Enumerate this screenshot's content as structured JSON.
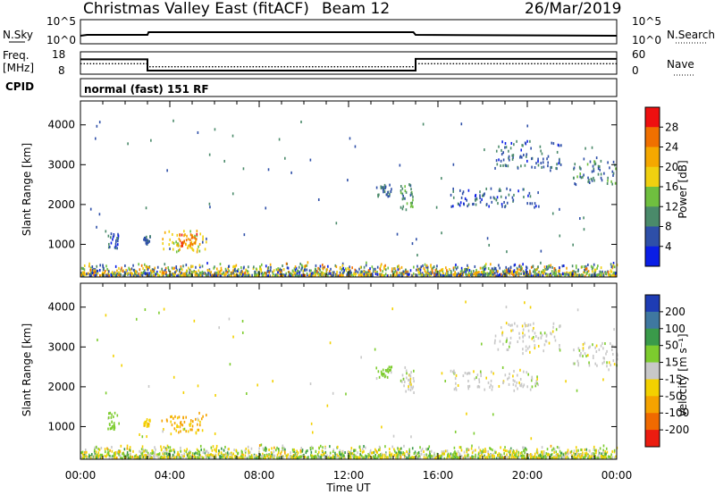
{
  "header": {
    "title": "Christmas Valley East (fitACF)",
    "beam": "Beam 12",
    "date": "26/Mar/2019"
  },
  "panels": {
    "nsky": {
      "label": "N.Sky",
      "left_ticks": [
        "10^5",
        "10^0"
      ],
      "right_ticks": [
        "10^5",
        "10^0"
      ],
      "right_label": "N.Search",
      "values": [
        [
          0,
          0.4
        ],
        [
          0.3,
          0.45
        ],
        [
          3,
          0.45
        ],
        [
          3.05,
          0.6
        ],
        [
          14.9,
          0.6
        ],
        [
          15,
          0.45
        ],
        [
          24,
          0.4
        ]
      ]
    },
    "freq": {
      "label": "Freq.",
      "unit": "[MHz]",
      "left_ticks": [
        "18",
        "8"
      ],
      "right_ticks": [
        "60",
        "0"
      ],
      "right_label": "Nave",
      "freq_steps": [
        [
          0,
          14.8
        ],
        [
          3.0,
          14.8
        ],
        [
          3.0,
          9.3
        ],
        [
          15.0,
          9.3
        ],
        [
          15.0,
          15.0
        ],
        [
          24,
          15.0
        ]
      ],
      "nave_steps": [
        [
          0,
          28
        ],
        [
          3.0,
          28
        ],
        [
          3.0,
          19
        ],
        [
          15.0,
          19
        ],
        [
          15.0,
          28
        ],
        [
          24,
          28
        ]
      ]
    },
    "cpid": {
      "label": "CPID",
      "text": "normal (fast) 151 RF"
    }
  },
  "x_ticks": [
    "00:00",
    "04:00",
    "08:00",
    "12:00",
    "16:00",
    "20:00",
    "00:00"
  ],
  "x_label": "Time UT",
  "y_label": "Slant Range [km]",
  "y_ticks": [
    "1000",
    "2000",
    "3000",
    "4000"
  ],
  "power_scale": {
    "label": "Power [dB]",
    "ticks": [
      "4",
      "8",
      "12",
      "16",
      "20",
      "24",
      "28"
    ],
    "colors": [
      "#0a1ee6",
      "#2e4fa8",
      "#4a8a6a",
      "#6fbf3f",
      "#f0d010",
      "#f5a800",
      "#f07000",
      "#ee1010"
    ]
  },
  "velocity_scale": {
    "label": "Velocity [m s⁻¹]",
    "ticks": [
      "200",
      "100",
      "50",
      "15",
      "-15",
      "-50",
      "-100",
      "-200"
    ],
    "colors": [
      "#1e3cb4",
      "#3f78a0",
      "#3a9a4a",
      "#7dcc2e",
      "#c8c8c8",
      "#f3d100",
      "#f5a300",
      "#f06a00",
      "#ec1c10"
    ]
  },
  "chart_data": {
    "type": "heatmap",
    "title": "Christmas Valley East (fitACF)",
    "xlabel": "Time UT",
    "ylabel": "Slant Range [km]",
    "xlim": [
      0,
      24
    ],
    "ylim": [
      180,
      4600
    ],
    "series": [
      {
        "name": "Power [dB]",
        "blobs": [
          {
            "t": [
              1.2,
              1.7
            ],
            "r": [
              900,
              1350
            ],
            "v": 6
          },
          {
            "t": [
              2.8,
              3.1
            ],
            "r": [
              1000,
              1200
            ],
            "v": 8
          },
          {
            "t": [
              3.6,
              5.6
            ],
            "r": [
              800,
              1350
            ],
            "v": 18
          },
          {
            "t": [
              4.3,
              5.2
            ],
            "r": [
              950,
              1250
            ],
            "v": 26
          },
          {
            "t": [
              13.2,
              13.9
            ],
            "r": [
              2200,
              2500
            ],
            "v": 8
          },
          {
            "t": [
              14.3,
              14.9
            ],
            "r": [
              1850,
              2500
            ],
            "v": 10
          },
          {
            "t": [
              16.5,
              20.5
            ],
            "r": [
              1900,
              2400
            ],
            "v": 7
          },
          {
            "t": [
              18.5,
              21.5
            ],
            "r": [
              2900,
              3600
            ],
            "v": 7
          },
          {
            "t": [
              22.0,
              24.0
            ],
            "r": [
              2500,
              3100
            ],
            "v": 9
          }
        ]
      },
      {
        "name": "Velocity [m s⁻¹]",
        "blobs": [
          {
            "t": [
              1.2,
              1.7
            ],
            "r": [
              900,
              1350
            ],
            "v": 30
          },
          {
            "t": [
              2.8,
              3.1
            ],
            "r": [
              1000,
              1200
            ],
            "v": -40
          },
          {
            "t": [
              3.6,
              5.6
            ],
            "r": [
              800,
              1350
            ],
            "v": -60
          },
          {
            "t": [
              13.2,
              13.9
            ],
            "r": [
              2200,
              2500
            ],
            "v": 30
          },
          {
            "t": [
              14.3,
              14.9
            ],
            "r": [
              1850,
              2500
            ],
            "v": 0
          },
          {
            "t": [
              16.5,
              20.5
            ],
            "r": [
              1900,
              2400
            ],
            "v": 0
          },
          {
            "t": [
              18.5,
              21.5
            ],
            "r": [
              2900,
              3600
            ],
            "v": 0
          },
          {
            "t": [
              22.0,
              24.0
            ],
            "r": [
              2500,
              3100
            ],
            "v": 0
          }
        ]
      }
    ]
  }
}
